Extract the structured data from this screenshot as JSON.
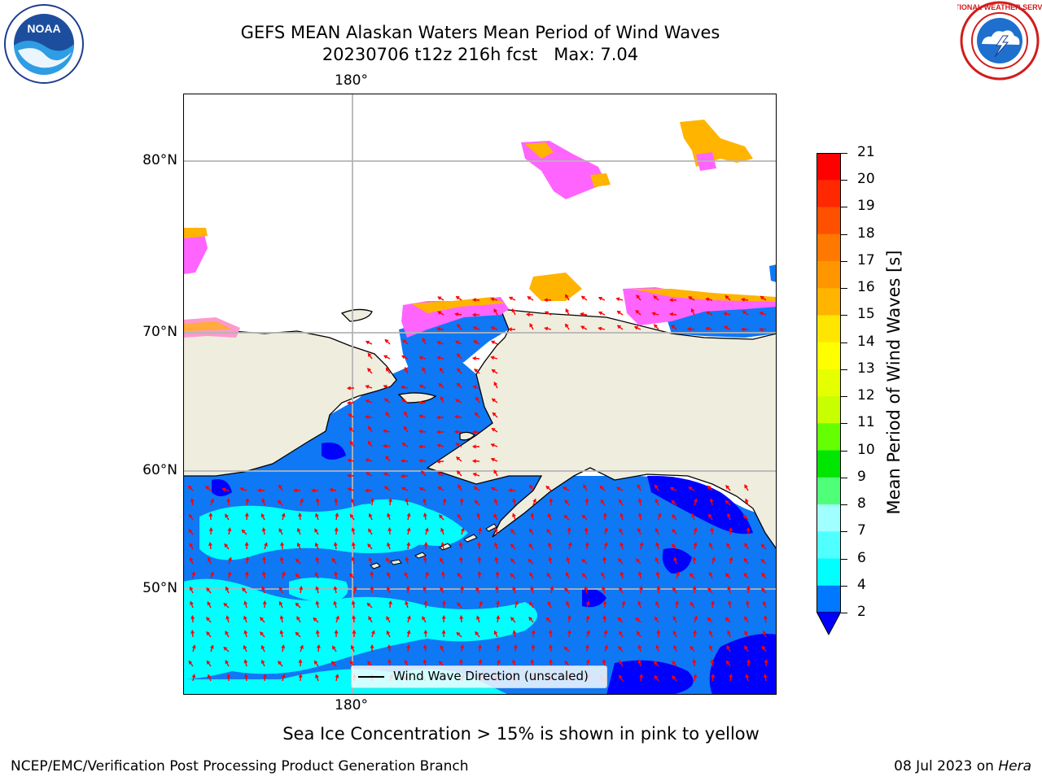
{
  "title": {
    "line1": "GEFS MEAN Alaskan Waters Mean Period of Wind Waves",
    "line2": "20230706 t12z 216h fcst   Max: 7.04"
  },
  "logos": {
    "left": {
      "icon": "noaa-logo",
      "text": "NOAA"
    },
    "right": {
      "icon": "nws-logo",
      "text": "NATIONAL WEATHER SERVICE"
    }
  },
  "axes": {
    "lon_top": "180°",
    "lon_bottom": "180°",
    "lat": [
      "80°N",
      "70°N",
      "60°N",
      "50°N"
    ]
  },
  "legend": {
    "label": "Wind Wave Direction (unscaled)"
  },
  "colorbar": {
    "label": "Mean Period of Wind Waves [s]",
    "ticks": [
      "21",
      "20",
      "19",
      "18",
      "17",
      "16",
      "15",
      "14",
      "13",
      "12",
      "11",
      "10",
      "9",
      "8",
      "7",
      "6",
      "4",
      "2"
    ],
    "colors": [
      "#ff0000",
      "#ff2800",
      "#ff5000",
      "#ff7800",
      "#ff9600",
      "#ffb400",
      "#ffe600",
      "#ffff00",
      "#e6ff00",
      "#c8ff00",
      "#64ff00",
      "#00e600",
      "#50ff78",
      "#a0ffff",
      "#50ffff",
      "#00ffff",
      "#0078ff"
    ],
    "extend_color": "#0000ff"
  },
  "note": "Sea Ice Concentration > 15% is shown in pink to yellow",
  "footer": {
    "left": "NCEP/EMC/Verification Post Processing Product Generation Branch",
    "date": "08 Jul 2023 on ",
    "machine": "Hera"
  },
  "colors": {
    "land": "#efedde",
    "ocean_main": "#0f78f5",
    "ocean_light": "#00ffff",
    "ocean_dark": "#0000ff",
    "ice_pink": "#ff64ff",
    "ice_orange": "#ffb400",
    "arrow": "#ff0000",
    "grid": "#b4b4b4"
  }
}
